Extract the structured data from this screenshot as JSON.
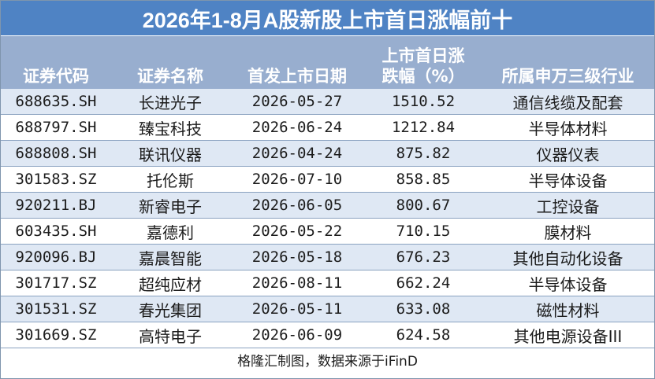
{
  "title": "2026年1-8月A股新股上市首日涨幅前十",
  "columns": [
    "证券代码",
    "证券名称",
    "首发上市日期",
    "上市首日涨\n跌幅（%）",
    "所属申万三级行业"
  ],
  "rows": [
    {
      "code": "688635.SH",
      "name": "长进光子",
      "date": "2026-05-27",
      "change": "1510.52",
      "industry": "通信线缆及配套"
    },
    {
      "code": "688797.SH",
      "name": "臻宝科技",
      "date": "2026-06-24",
      "change": "1212.84",
      "industry": "半导体材料"
    },
    {
      "code": "688808.SH",
      "name": "联讯仪器",
      "date": "2026-04-24",
      "change": "875.82",
      "industry": "仪器仪表"
    },
    {
      "code": "301583.SZ",
      "name": "托伦斯",
      "date": "2026-07-10",
      "change": "858.85",
      "industry": "半导体设备"
    },
    {
      "code": "920211.BJ",
      "name": "新睿电子",
      "date": "2026-06-05",
      "change": "800.67",
      "industry": "工控设备"
    },
    {
      "code": "603435.SH",
      "name": "嘉德利",
      "date": "2026-05-22",
      "change": "710.15",
      "industry": "膜材料"
    },
    {
      "code": "920096.BJ",
      "name": "嘉晨智能",
      "date": "2026-05-18",
      "change": "676.23",
      "industry": "其他自动化设备"
    },
    {
      "code": "301717.SZ",
      "name": "超纯应材",
      "date": "2026-08-11",
      "change": "662.24",
      "industry": "半导体设备"
    },
    {
      "code": "301531.SZ",
      "name": "春光集团",
      "date": "2026-05-11",
      "change": "633.08",
      "industry": "磁性材料"
    },
    {
      "code": "301669.SZ",
      "name": "高特电子",
      "date": "2026-06-09",
      "change": "624.58",
      "industry": "其他电源设备III"
    }
  ],
  "source": "格隆汇制图，数据来源于iFinD",
  "colors": {
    "title_bg": "#4f83c4",
    "header_bg": "#98aecf",
    "row_alt": "#dfe8f4"
  }
}
